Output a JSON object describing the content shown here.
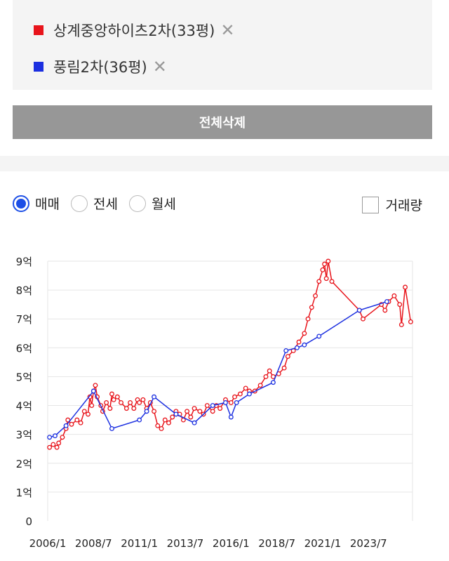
{
  "legend": [
    {
      "label": "상계중앙하이츠2차(33평)",
      "color": "#e8141b",
      "remove_icon": "close-icon"
    },
    {
      "label": "풍림2차(36평)",
      "color": "#1b2fe0",
      "remove_icon": "close-icon"
    }
  ],
  "delete_all_label": "전체삭제",
  "tabs": [
    {
      "label": "매매",
      "selected": true
    },
    {
      "label": "전세",
      "selected": false
    },
    {
      "label": "월세",
      "selected": false
    }
  ],
  "volume_label": "거래량",
  "chart_data": {
    "type": "line",
    "title": "",
    "xlabel": "",
    "ylabel": "",
    "ylim": [
      0,
      9
    ],
    "yticks": [
      0,
      1,
      2,
      3,
      4,
      5,
      6,
      7,
      8,
      9
    ],
    "ytick_labels": [
      "0",
      "1억",
      "2억",
      "3억",
      "4억",
      "5억",
      "6억",
      "7억",
      "8억",
      "9억"
    ],
    "xlim": [
      2006.0,
      2025.9
    ],
    "xticks": [
      2006.0,
      2008.5,
      2011.0,
      2013.5,
      2016.0,
      2018.5,
      2021.0,
      2023.5
    ],
    "xtick_labels": [
      "2006/1",
      "2008/7",
      "2011/1",
      "2013/7",
      "2016/1",
      "2018/7",
      "2021/1",
      "2023/7"
    ],
    "grid": true,
    "series": [
      {
        "name": "상계중앙하이츠2차(33평)",
        "color": "#e8141b",
        "x": [
          2006.1,
          2006.3,
          2006.5,
          2006.6,
          2006.8,
          2007.0,
          2007.1,
          2007.3,
          2007.6,
          2007.8,
          2008.0,
          2008.2,
          2008.3,
          2008.4,
          2008.5,
          2008.6,
          2008.7,
          2008.9,
          2009.0,
          2009.2,
          2009.4,
          2009.5,
          2009.6,
          2009.8,
          2010.0,
          2010.3,
          2010.5,
          2010.7,
          2010.9,
          2011.0,
          2011.2,
          2011.4,
          2011.6,
          2011.8,
          2012.0,
          2012.2,
          2012.4,
          2012.6,
          2012.8,
          2013.0,
          2013.2,
          2013.4,
          2013.6,
          2013.8,
          2014.0,
          2014.3,
          2014.5,
          2014.7,
          2015.0,
          2015.2,
          2015.4,
          2015.7,
          2016.0,
          2016.2,
          2016.5,
          2016.8,
          2017.0,
          2017.3,
          2017.6,
          2017.9,
          2018.1,
          2018.3,
          2018.6,
          2018.9,
          2019.1,
          2019.4,
          2019.7,
          2020.0,
          2020.2,
          2020.4,
          2020.6,
          2020.8,
          2021.0,
          2021.1,
          2021.2,
          2021.3,
          2021.5,
          2023.0,
          2023.2,
          2024.2,
          2024.4,
          2024.6,
          2024.9,
          2025.2,
          2025.3,
          2025.5,
          2025.8
        ],
        "y": [
          2.55,
          2.65,
          2.55,
          2.7,
          2.9,
          3.2,
          3.5,
          3.35,
          3.5,
          3.4,
          3.8,
          3.7,
          4.3,
          4.0,
          4.5,
          4.7,
          4.3,
          4.0,
          3.8,
          4.1,
          3.9,
          4.4,
          4.2,
          4.3,
          4.1,
          3.9,
          4.1,
          3.9,
          4.2,
          4.1,
          4.2,
          3.9,
          4.1,
          3.8,
          3.3,
          3.2,
          3.5,
          3.4,
          3.6,
          3.8,
          3.7,
          3.5,
          3.8,
          3.6,
          3.9,
          3.8,
          3.7,
          4.0,
          3.8,
          4.0,
          3.9,
          4.2,
          4.1,
          4.3,
          4.4,
          4.6,
          4.5,
          4.5,
          4.7,
          5.0,
          5.2,
          5.0,
          5.1,
          5.3,
          5.7,
          5.9,
          6.2,
          6.5,
          7.0,
          7.4,
          7.8,
          8.3,
          8.7,
          8.9,
          8.4,
          9.0,
          8.3,
          7.3,
          7.0,
          7.5,
          7.3,
          7.6,
          7.8,
          7.5,
          6.8,
          8.1,
          6.9
        ]
      },
      {
        "name": "풍림2차(36평)",
        "color": "#1b2fe0",
        "x": [
          2006.1,
          2006.4,
          2007.0,
          2008.5,
          2009.5,
          2011.0,
          2011.4,
          2011.8,
          2013.0,
          2014.0,
          2015.0,
          2015.7,
          2016.0,
          2016.3,
          2017.0,
          2018.3,
          2019.0,
          2019.6,
          2020.0,
          2020.8,
          2023.0,
          2024.5
        ],
        "y": [
          2.9,
          2.95,
          3.3,
          4.5,
          3.2,
          3.5,
          3.8,
          4.3,
          3.7,
          3.4,
          4.0,
          4.1,
          3.6,
          4.1,
          4.4,
          4.8,
          5.9,
          6.0,
          6.1,
          6.4,
          7.3,
          7.6
        ]
      }
    ]
  }
}
